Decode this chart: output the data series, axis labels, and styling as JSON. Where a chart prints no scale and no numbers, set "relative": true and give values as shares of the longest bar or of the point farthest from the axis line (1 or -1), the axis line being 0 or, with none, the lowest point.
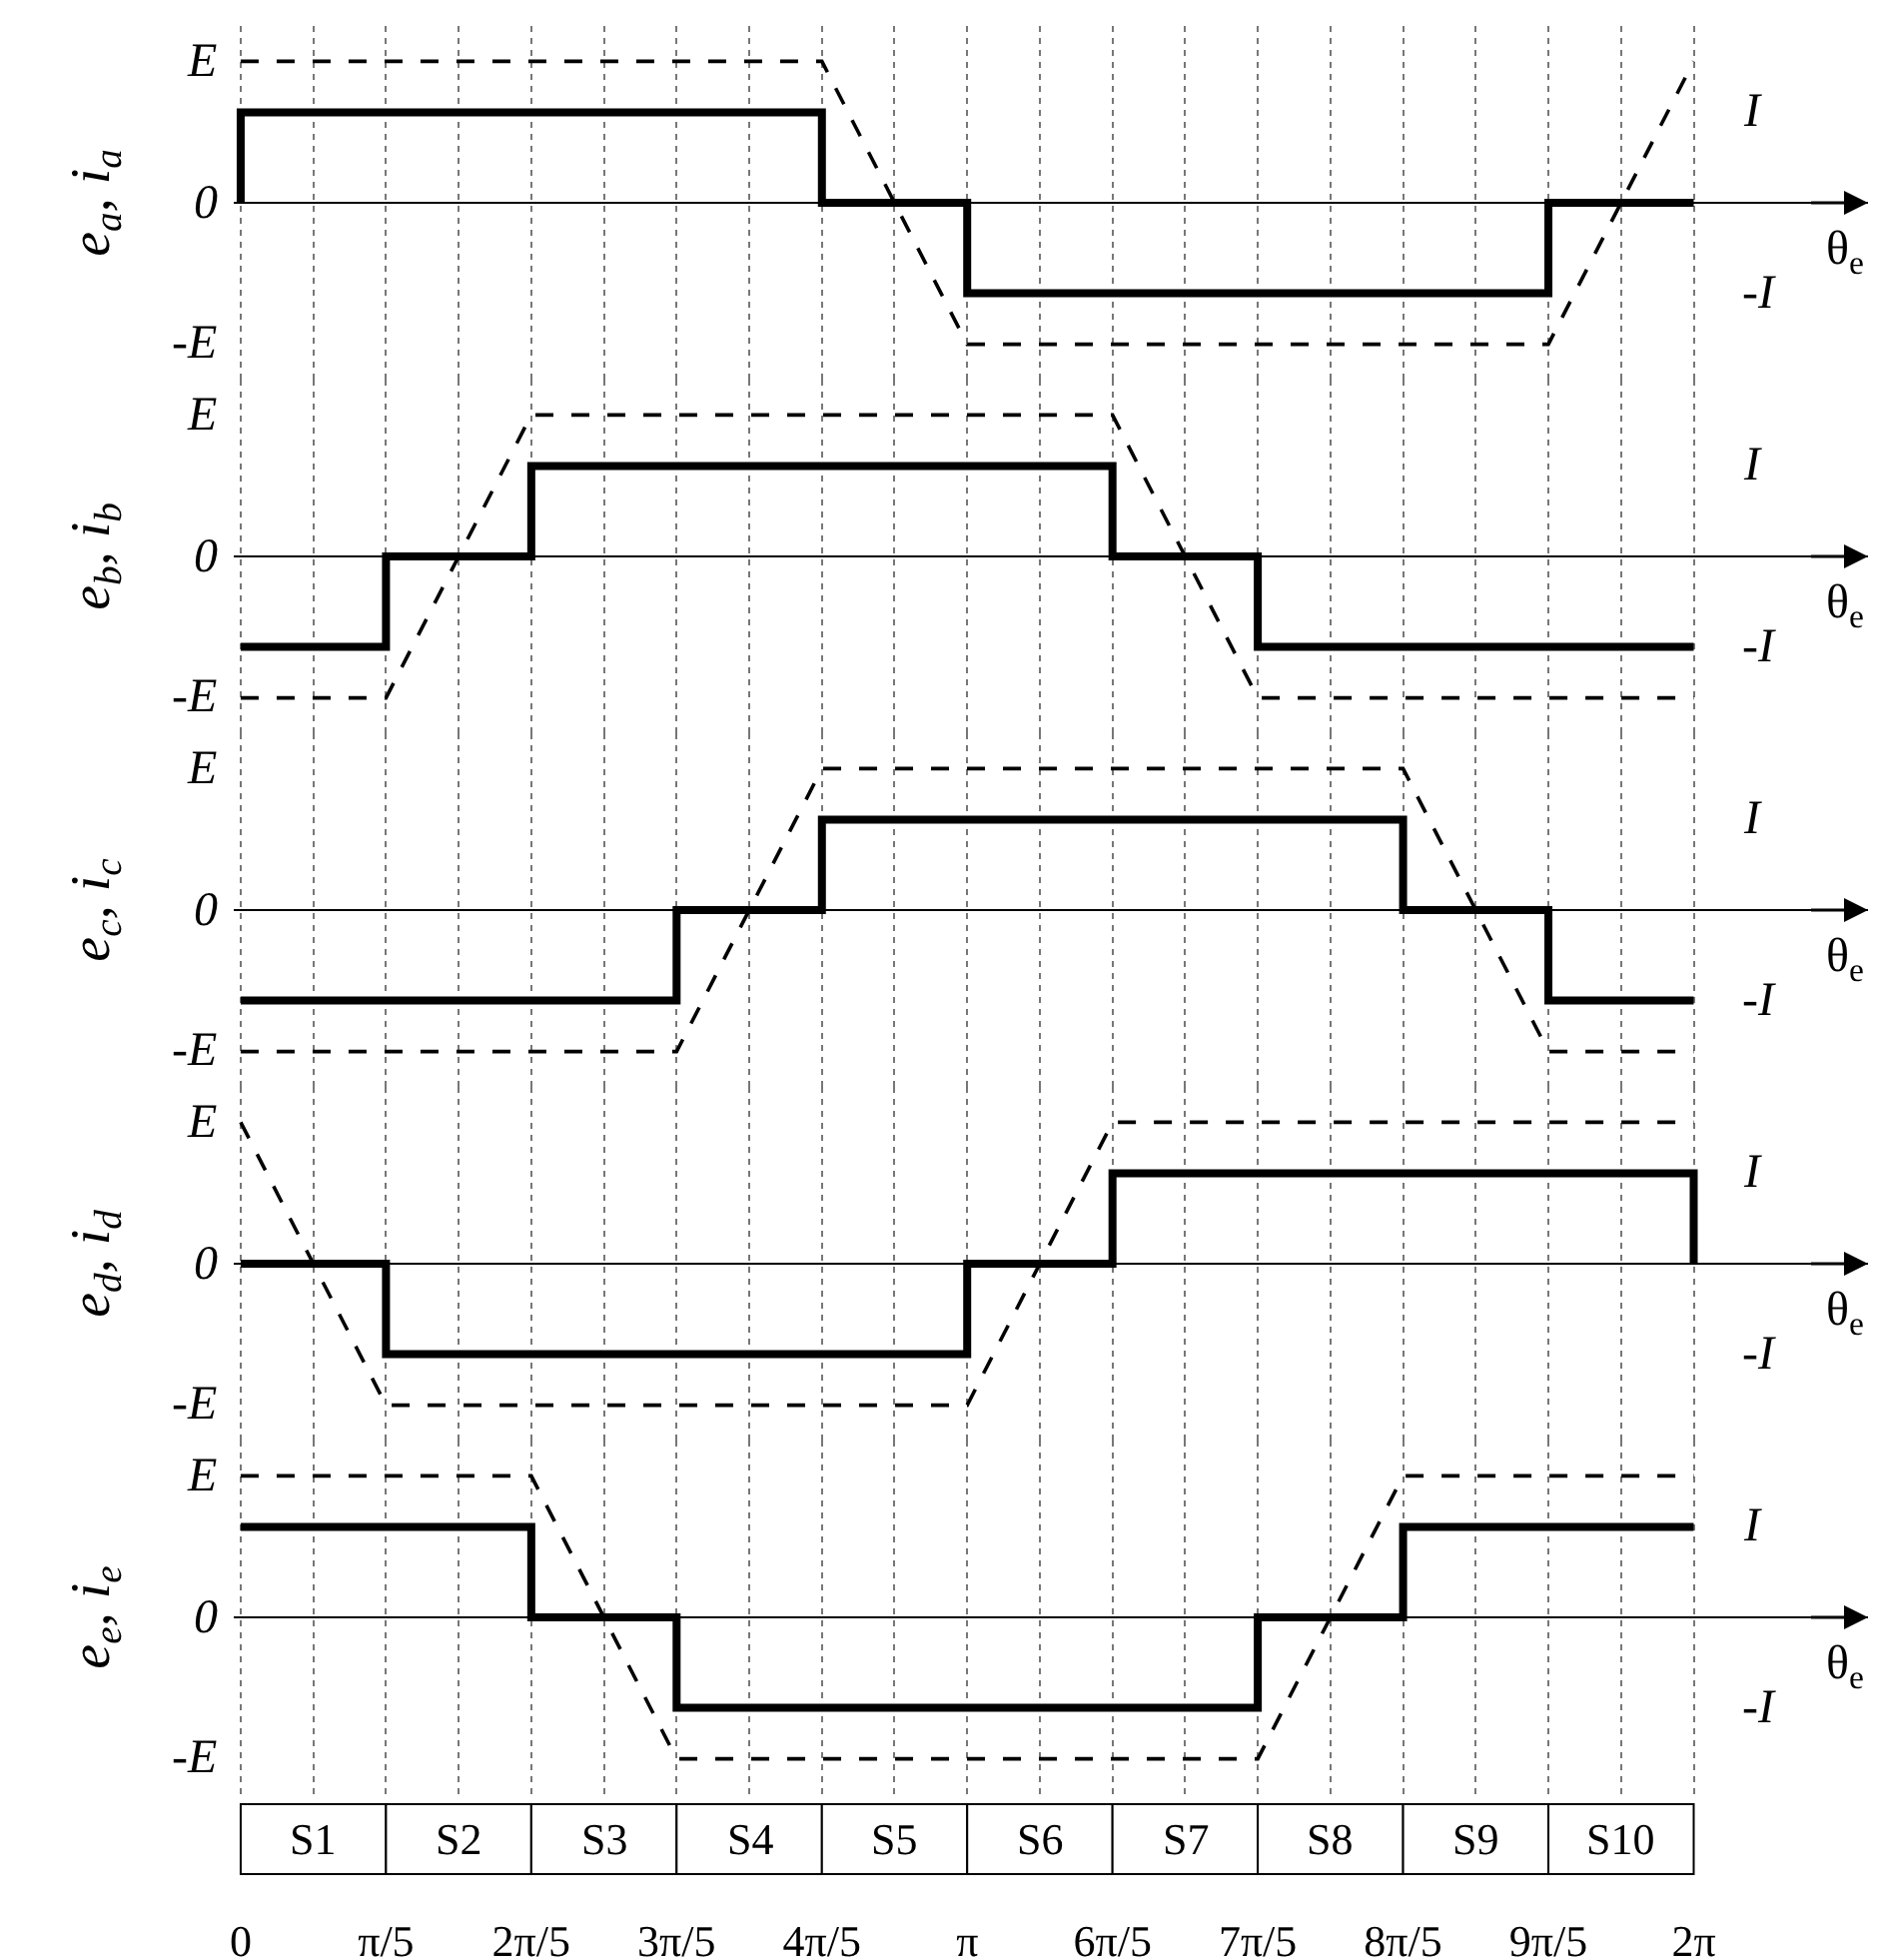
{
  "chart_data": [
    {
      "type": "line",
      "relative": true,
      "ylabel": "e$_{a}$, i$_{a}$",
      "xlabel": "θ$_{e}$",
      "xlim": [
        -0.03,
        7.037
      ],
      "grid": "x",
      "tick_labels": false,
      "annotations": [
        "E",
        "0",
        "-E",
        "I",
        "-I"
      ],
      "series": [
        {
          "line_style": "dashed",
          "color": "#000000",
          "x": [
            0,
            2.5133,
            3.1416,
            5.6549,
            6.2832
          ],
          "values": [
            1,
            1,
            -1,
            -1,
            1
          ]
        },
        {
          "line_style": "solid",
          "color": "#000000",
          "x": [
            0,
            0,
            2.5133,
            2.5133,
            3.1416,
            3.1416,
            5.6549,
            5.6549,
            6.2832
          ],
          "values": [
            0,
            0.64,
            0.64,
            0,
            0,
            -0.64,
            -0.64,
            0,
            0
          ]
        }
      ]
    },
    {
      "type": "line",
      "relative": true,
      "ylabel": "e$_{b}$, i$_{b}$",
      "xlabel": "θ$_{e}$",
      "xlim": [
        -0.03,
        7.037
      ],
      "grid": "x",
      "tick_labels": false,
      "annotations": [
        "E",
        "0",
        "-E",
        "I",
        "-I"
      ],
      "series": [
        {
          "line_style": "dashed",
          "color": "#000000",
          "x": [
            0,
            0.6283,
            1.2566,
            3.7699,
            4.3982,
            6.2832
          ],
          "values": [
            -1,
            -1,
            1,
            1,
            -1,
            -1
          ]
        },
        {
          "line_style": "solid",
          "color": "#000000",
          "x": [
            0,
            0.6283,
            0.6283,
            1.2566,
            1.2566,
            3.7699,
            3.7699,
            4.3982,
            4.3982,
            6.2832
          ],
          "values": [
            -0.64,
            -0.64,
            0,
            0,
            0.64,
            0.64,
            0,
            0,
            -0.64,
            -0.64
          ]
        }
      ]
    },
    {
      "type": "line",
      "relative": true,
      "ylabel": "e$_{c}$, i$_{c}$",
      "xlabel": "θ$_{e}$",
      "xlim": [
        -0.03,
        7.037
      ],
      "grid": "x",
      "tick_labels": false,
      "annotations": [
        "E",
        "0",
        "-E",
        "I",
        "-I"
      ],
      "series": [
        {
          "line_style": "dashed",
          "color": "#000000",
          "x": [
            0,
            1.885,
            2.5133,
            5.0265,
            5.6549,
            6.2832
          ],
          "values": [
            -1,
            -1,
            1,
            1,
            -1,
            -1
          ]
        },
        {
          "line_style": "solid",
          "color": "#000000",
          "x": [
            0,
            1.885,
            1.885,
            2.5133,
            2.5133,
            5.0265,
            5.0265,
            5.6549,
            5.6549,
            6.2832
          ],
          "values": [
            -0.64,
            -0.64,
            0,
            0,
            0.64,
            0.64,
            0,
            0,
            -0.64,
            -0.64
          ]
        }
      ]
    },
    {
      "type": "line",
      "relative": true,
      "ylabel": "e$_{d}$, i$_{d}$",
      "xlabel": "θ$_{e}$",
      "xlim": [
        -0.03,
        7.037
      ],
      "grid": "x",
      "tick_labels": false,
      "annotations": [
        "E",
        "0",
        "-E",
        "I",
        "-I"
      ],
      "series": [
        {
          "line_style": "dashed",
          "color": "#000000",
          "x": [
            0,
            0.6283,
            3.1416,
            3.7699,
            6.2832
          ],
          "values": [
            1,
            -1,
            -1,
            1,
            1
          ]
        },
        {
          "line_style": "solid",
          "color": "#000000",
          "x": [
            0,
            0.6283,
            0.6283,
            3.1416,
            3.1416,
            3.7699,
            3.7699,
            6.2832,
            6.2832
          ],
          "values": [
            0,
            0,
            -0.64,
            -0.64,
            0,
            0,
            0.64,
            0.64,
            0
          ]
        }
      ]
    },
    {
      "type": "line",
      "relative": true,
      "ylabel": "e$_{e}$, i$_{e}$",
      "xlabel": "θ$_{e}$",
      "xlim": [
        -0.03,
        7.037
      ],
      "grid": "x",
      "tick_labels": "x",
      "xticks": [
        0,
        {
          "value": 0.3142,
          "label": null
        },
        {
          "value": 0.6283,
          "label": "π/5"
        },
        {
          "value": 0.9425,
          "label": null
        },
        {
          "value": 1.2566,
          "label": "2π/5"
        },
        {
          "value": 1.5708,
          "label": null
        },
        {
          "value": 1.885,
          "label": "3π/5"
        },
        {
          "value": 2.1991,
          "label": null
        },
        {
          "value": 2.5133,
          "label": "4π/5"
        },
        {
          "value": 2.8274,
          "label": null
        },
        {
          "value": 3.1416,
          "label": "π"
        },
        {
          "value": 3.4558,
          "label": null
        },
        {
          "value": 3.7699,
          "label": "6π/5"
        },
        {
          "value": 4.0841,
          "label": null
        },
        {
          "value": 4.3982,
          "label": "7π/5"
        },
        {
          "value": 4.7124,
          "label": null
        },
        {
          "value": 5.0265,
          "label": "8π/5"
        },
        {
          "value": 5.3407,
          "label": null
        },
        {
          "value": 5.6549,
          "label": "9π/5"
        },
        {
          "value": 5.969,
          "label": null
        },
        {
          "value": 6.2832,
          "label": "2π"
        }
      ],
      "annotations": [
        "E",
        "0",
        "-E",
        "I",
        "-I",
        "S1",
        "S2",
        "S3",
        "S4",
        "S5",
        "S6",
        "S7",
        "S8",
        "S9",
        "S10"
      ],
      "series": [
        {
          "line_style": "dashed",
          "color": "#000000",
          "x": [
            0,
            1.2566,
            1.885,
            4.3982,
            5.0265,
            6.2832
          ],
          "values": [
            1,
            1,
            -1,
            -1,
            1,
            1
          ]
        },
        {
          "line_style": "solid",
          "color": "#000000",
          "x": [
            0,
            1.2566,
            1.2566,
            1.885,
            1.885,
            4.3982,
            4.3982,
            5.0265,
            5.0265,
            6.2832
          ],
          "values": [
            0.64,
            0.64,
            0,
            0,
            -0.64,
            -0.64,
            0,
            0,
            0.64,
            0.64
          ]
        }
      ]
    }
  ]
}
